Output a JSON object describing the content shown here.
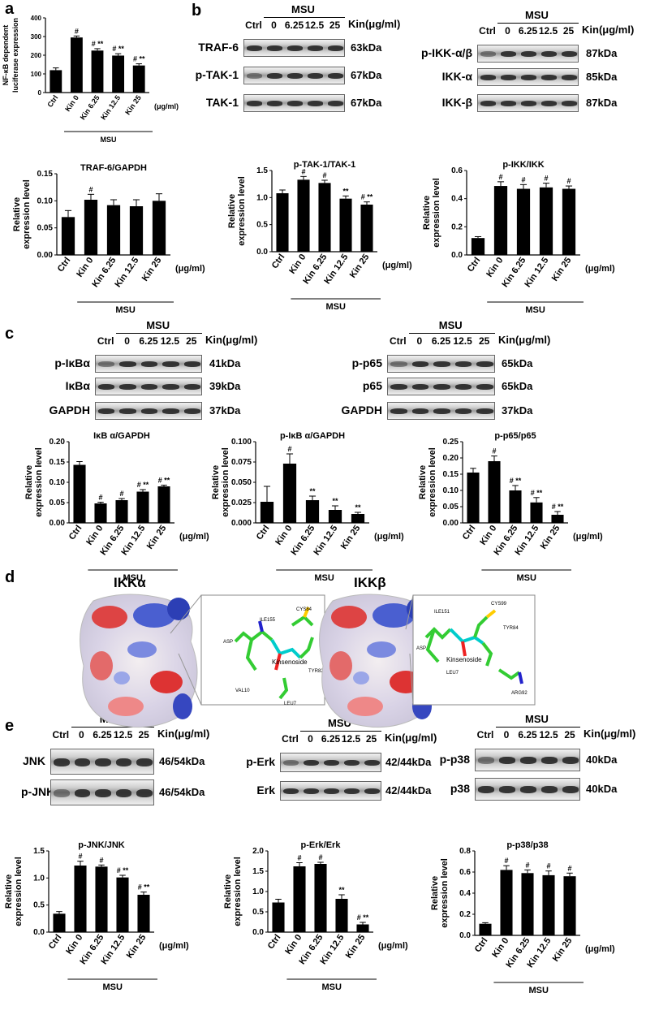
{
  "panels": {
    "a": "a",
    "b": "b",
    "c": "c",
    "d": "d",
    "e": "e"
  },
  "common": {
    "msu": "MSU",
    "kin_unit": "Kin(μg/ml)",
    "unit": "(μg/ml)",
    "ylabel": "Relative\nexpression level"
  },
  "blots": [
    {
      "id": "b1",
      "lanes": [
        "Ctrl",
        "0",
        "6.25",
        "12.5",
        "25"
      ],
      "rows": [
        {
          "label": "TRAF-6",
          "kda": "63kDa"
        },
        {
          "label": "p-TAK-1",
          "kda": "67kDa"
        },
        {
          "label": "TAK-1",
          "kda": "67kDa"
        }
      ]
    },
    {
      "id": "b2",
      "lanes": [
        "Ctrl",
        "0",
        "6.25",
        "12.5",
        "25"
      ],
      "rows": [
        {
          "label": "p-IKK-α/β",
          "kda": "87kDa"
        },
        {
          "label": "IKK-α",
          "kda": "85kDa"
        },
        {
          "label": "IKK-β",
          "kda": "87kDa"
        }
      ]
    },
    {
      "id": "c1",
      "lanes": [
        "Ctrl",
        "0",
        "6.25",
        "12.5",
        "25"
      ],
      "rows": [
        {
          "label": "p-IκBα",
          "kda": "41kDa"
        },
        {
          "label": "IκBα",
          "kda": "39kDa"
        },
        {
          "label": "GAPDH",
          "kda": "37kDa"
        }
      ]
    },
    {
      "id": "c2",
      "lanes": [
        "Ctrl",
        "0",
        "6.25",
        "12.5",
        "25"
      ],
      "rows": [
        {
          "label": "p-p65",
          "kda": "65kDa"
        },
        {
          "label": "p65",
          "kda": "65kDa"
        },
        {
          "label": "GAPDH",
          "kda": "37kDa"
        }
      ]
    },
    {
      "id": "e1",
      "lanes": [
        "Ctrl",
        "0",
        "6.25",
        "12.5",
        "25"
      ],
      "rows": [
        {
          "label": "JNK",
          "kda": "46/54kDa"
        },
        {
          "label": "p-JNK",
          "kda": "46/54kDa"
        }
      ]
    },
    {
      "id": "e2",
      "lanes": [
        "Ctrl",
        "0",
        "6.25",
        "12.5",
        "25"
      ],
      "rows": [
        {
          "label": "p-Erk",
          "kda": "42/44kDa"
        },
        {
          "label": "Erk",
          "kda": "42/44kDa"
        }
      ]
    },
    {
      "id": "e3",
      "lanes": [
        "Ctrl",
        "0",
        "6.25",
        "12.5",
        "25"
      ],
      "rows": [
        {
          "label": "p-p38",
          "kda": "40kDa"
        },
        {
          "label": "p38",
          "kda": "40kDa"
        }
      ]
    }
  ],
  "docking": {
    "ikka": {
      "title": "IKKα",
      "ligand": "Kinsenoside",
      "residues": [
        "CYS84",
        "ILE155",
        "ASP",
        "TYR82",
        "VAL10",
        "LEU7"
      ]
    },
    "ikkb": {
      "title": "IKKβ",
      "ligand": "Kinsenoside",
      "residues": [
        "ILE151",
        "CYS99",
        "TYR84",
        "ASP",
        "LEU7",
        "ARG92"
      ]
    }
  },
  "chart_data": [
    {
      "id": "a",
      "type": "bar",
      "title": "",
      "ylabel": "NF-κB dependent\nluciferase expression",
      "ylim": [
        0,
        400
      ],
      "yticks": [
        0,
        100,
        200,
        300,
        400
      ],
      "categories": [
        "Ctrl",
        "Kin 0",
        "Kin 6.25",
        "Kin 12.5",
        "Kin 25"
      ],
      "values": [
        120,
        295,
        225,
        198,
        145
      ],
      "errors": [
        12,
        8,
        10,
        10,
        9
      ],
      "marks": [
        "",
        "#",
        "# **",
        "# **",
        "# **"
      ]
    },
    {
      "id": "traf6",
      "type": "bar",
      "title": "TRAF-6/GAPDH",
      "ylabel": "Relative\nexpression level",
      "ylim": [
        0,
        0.15
      ],
      "yticks": [
        "0.00",
        "0.05",
        "0.10",
        "0.15"
      ],
      "categories": [
        "Ctrl",
        "Kin 0",
        "Kin 6.25",
        "Kin 12.5",
        "Kin 25"
      ],
      "values": [
        0.07,
        0.102,
        0.092,
        0.09,
        0.1
      ],
      "errors": [
        0.012,
        0.01,
        0.01,
        0.012,
        0.013
      ],
      "marks": [
        "",
        "#",
        "",
        "",
        ""
      ]
    },
    {
      "id": "ptak1",
      "type": "bar",
      "title": "p-TAK-1/TAK-1",
      "ylabel": "Relative\nexpression level",
      "ylim": [
        0,
        1.5
      ],
      "yticks": [
        "0.0",
        "0.5",
        "1.0",
        "1.5"
      ],
      "categories": [
        "Ctrl",
        "Kin 0",
        "Kin 6.25",
        "Kin 12.5",
        "Kin 25"
      ],
      "values": [
        1.08,
        1.33,
        1.27,
        0.98,
        0.87
      ],
      "errors": [
        0.06,
        0.06,
        0.05,
        0.05,
        0.05
      ],
      "marks": [
        "",
        "#",
        "#",
        "**",
        "# **"
      ]
    },
    {
      "id": "pikk",
      "type": "bar",
      "title": "p-IKK/IKK",
      "ylabel": "Relative\nexpression level",
      "ylim": [
        0,
        0.6
      ],
      "yticks": [
        "0.0",
        "0.2",
        "0.4",
        "0.6"
      ],
      "categories": [
        "Ctrl",
        "Kin 0",
        "Kin 6.25",
        "Kin 12.5",
        "Kin 25"
      ],
      "values": [
        0.12,
        0.49,
        0.47,
        0.48,
        0.47
      ],
      "errors": [
        0.01,
        0.03,
        0.03,
        0.03,
        0.02
      ],
      "marks": [
        "",
        "#",
        "#",
        "#",
        "#"
      ]
    },
    {
      "id": "ikba",
      "type": "bar",
      "title": "IκB α/GAPDH",
      "ylabel": "Relative\nexpression level",
      "ylim": [
        0,
        0.2
      ],
      "yticks": [
        "0.00",
        "0.05",
        "0.10",
        "0.15",
        "0.20"
      ],
      "categories": [
        "Ctrl",
        "Kin 0",
        "Kin 6.25",
        "Kin 12.5",
        "Kin 25"
      ],
      "values": [
        0.143,
        0.048,
        0.056,
        0.077,
        0.09
      ],
      "errors": [
        0.008,
        0.003,
        0.004,
        0.005,
        0.003
      ],
      "marks": [
        "",
        "#",
        "#",
        "# **",
        "# **"
      ]
    },
    {
      "id": "pikba",
      "type": "bar",
      "title": "p-IκB α/GAPDH",
      "ylabel": "Relative\nexpression level",
      "ylim": [
        0,
        0.1
      ],
      "yticks": [
        "0.000",
        "0.025",
        "0.050",
        "0.075",
        "0.100"
      ],
      "categories": [
        "Ctrl",
        "Kin 0",
        "Kin 6.25",
        "Kin 12.5",
        "Kin 25"
      ],
      "values": [
        0.026,
        0.073,
        0.028,
        0.016,
        0.011
      ],
      "errors": [
        0.019,
        0.012,
        0.005,
        0.005,
        0.002
      ],
      "marks": [
        "",
        "#",
        "**",
        "**",
        "**"
      ]
    },
    {
      "id": "pp65",
      "type": "bar",
      "title": "p-p65/p65",
      "ylabel": "Relative\nexpression level",
      "ylim": [
        0,
        0.25
      ],
      "yticks": [
        "0.00",
        "0.05",
        "0.10",
        "0.15",
        "0.20",
        "0.25"
      ],
      "categories": [
        "Ctrl",
        "Kin 0",
        "Kin 6.25",
        "Kin 12.5",
        "Kin 25"
      ],
      "values": [
        0.155,
        0.19,
        0.1,
        0.063,
        0.025
      ],
      "errors": [
        0.013,
        0.016,
        0.015,
        0.015,
        0.01
      ],
      "marks": [
        "",
        "#",
        "# **",
        "# **",
        "# **"
      ]
    },
    {
      "id": "pjnk",
      "type": "bar",
      "title": "p-JNK/JNK",
      "ylabel": "Relative\nexpression level",
      "ylim": [
        0,
        1.5
      ],
      "yticks": [
        "0.0",
        "0.5",
        "1.0",
        "1.5"
      ],
      "categories": [
        "Ctrl",
        "Kin 0",
        "Kin 6.25",
        "Kin 12.5",
        "Kin 25"
      ],
      "values": [
        0.34,
        1.23,
        1.21,
        1.01,
        0.69
      ],
      "errors": [
        0.04,
        0.08,
        0.03,
        0.04,
        0.05
      ],
      "marks": [
        "",
        "#",
        "#",
        "# **",
        "# **"
      ]
    },
    {
      "id": "perk",
      "type": "bar",
      "title": "p-Erk/Erk",
      "ylabel": "Relative\nexpression level",
      "ylim": [
        0,
        2.0
      ],
      "yticks": [
        "0.0",
        "0.5",
        "1.0",
        "1.5",
        "2.0"
      ],
      "categories": [
        "Ctrl",
        "Kin 0",
        "Kin 6.25",
        "Kin 12.5",
        "Kin 25"
      ],
      "values": [
        0.73,
        1.62,
        1.68,
        0.82,
        0.19
      ],
      "errors": [
        0.08,
        0.09,
        0.04,
        0.1,
        0.05
      ],
      "marks": [
        "",
        "#",
        "#",
        "**",
        "# **"
      ]
    },
    {
      "id": "pp38",
      "type": "bar",
      "title": "p-p38/p38",
      "ylabel": "Relative\nexpression level",
      "ylim": [
        0,
        0.8
      ],
      "yticks": [
        "0.0",
        "0.2",
        "0.4",
        "0.6",
        "0.8"
      ],
      "categories": [
        "Ctrl",
        "Kin 0",
        "Kin 6.25",
        "Kin 12.5",
        "Kin 25"
      ],
      "values": [
        0.11,
        0.62,
        0.59,
        0.57,
        0.56
      ],
      "errors": [
        0.01,
        0.04,
        0.03,
        0.04,
        0.03
      ],
      "marks": [
        "",
        "#",
        "#",
        "#",
        "#"
      ]
    }
  ]
}
